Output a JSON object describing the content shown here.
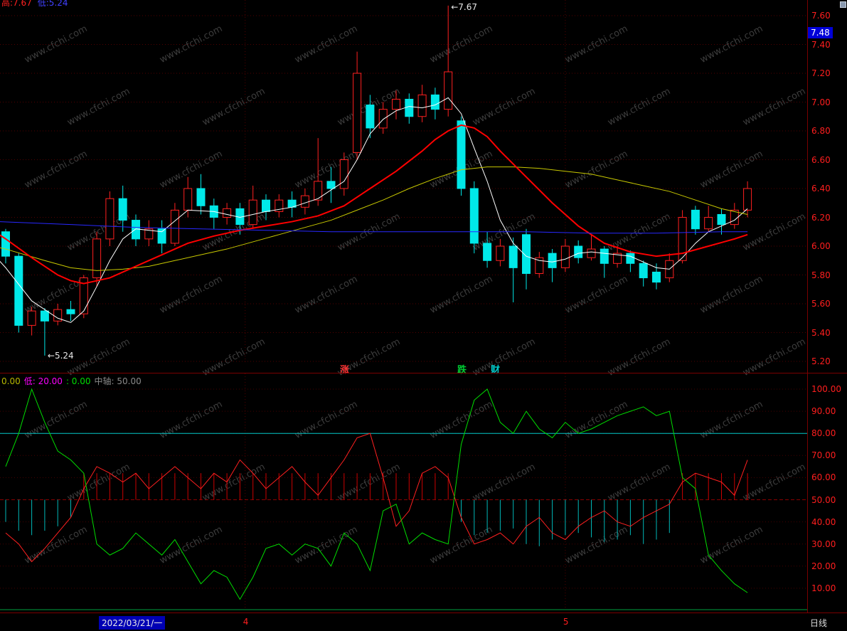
{
  "app": {
    "watermark_text": "www.cfchi.com"
  },
  "kline_panel": {
    "legend": {
      "red": "高:7.67",
      "blue": "低:5.24"
    },
    "annotations": {
      "high": "←7.67",
      "low": "←5.24"
    },
    "y_axis_labels": [
      "7.60",
      "7.40",
      "7.20",
      "7.00",
      "6.80",
      "6.60",
      "6.40",
      "6.20",
      "6.00",
      "5.80",
      "5.60",
      "5.40",
      "5.20"
    ],
    "price_badge": "7.48"
  },
  "divider": {
    "labels": [
      {
        "text": "涨",
        "color": "#ff3333",
        "x": 478
      },
      {
        "text": "跌",
        "color": "#00cc33",
        "x": 643
      },
      {
        "text": "财",
        "color": "#00cccc",
        "x": 690
      }
    ]
  },
  "oscillator_panel": {
    "legend_segments": [
      {
        "text": "0.00",
        "color": "#b8b800"
      },
      {
        "text": "低: 20.00",
        "color": "#ff00ff"
      },
      {
        "text": ": 0.00",
        "color": "#00dd00"
      },
      {
        "text": "中轴: 50.00",
        "color": "#8a8a8a"
      }
    ],
    "y_axis_labels": [
      "100.00",
      "90.00",
      "80.00",
      "70.00",
      "60.00",
      "50.00",
      "40.00",
      "30.00",
      "20.00",
      "10.00"
    ]
  },
  "bottom_bar": {
    "date_label": "2022/03/21/一",
    "period_label": "日线"
  },
  "chart_data": {
    "type": "candlestick",
    "month_boundaries": [
      {
        "label": "4",
        "index": 18.4
      },
      {
        "label": "5",
        "index": 43
      }
    ],
    "kline": {
      "ylim": [
        5.2,
        7.6
      ],
      "high_annotation": {
        "index": 34,
        "price": 7.67
      },
      "low_annotation": {
        "index": 3,
        "price": 5.24
      },
      "candles": [
        [
          6.1,
          6.12,
          5.88,
          5.93
        ],
        [
          5.93,
          5.95,
          5.4,
          5.45
        ],
        [
          5.45,
          5.58,
          5.38,
          5.55
        ],
        [
          5.55,
          5.57,
          5.24,
          5.48
        ],
        [
          5.48,
          5.6,
          5.45,
          5.56
        ],
        [
          5.56,
          5.62,
          5.48,
          5.53
        ],
        [
          5.53,
          5.8,
          5.5,
          5.78
        ],
        [
          5.78,
          6.1,
          5.72,
          6.05
        ],
        [
          6.05,
          6.38,
          6.0,
          6.33
        ],
        [
          6.33,
          6.42,
          6.1,
          6.18
        ],
        [
          6.18,
          6.22,
          6.0,
          6.05
        ],
        [
          6.05,
          6.18,
          6.0,
          6.12
        ],
        [
          6.12,
          6.18,
          5.95,
          6.02
        ],
        [
          6.02,
          6.3,
          6.0,
          6.25
        ],
        [
          6.25,
          6.48,
          6.2,
          6.4
        ],
        [
          6.4,
          6.5,
          6.22,
          6.28
        ],
        [
          6.28,
          6.33,
          6.12,
          6.2
        ],
        [
          6.2,
          6.3,
          6.15,
          6.26
        ],
        [
          6.26,
          6.3,
          6.08,
          6.15
        ],
        [
          6.15,
          6.42,
          6.12,
          6.32
        ],
        [
          6.32,
          6.36,
          6.18,
          6.24
        ],
        [
          6.24,
          6.36,
          6.2,
          6.32
        ],
        [
          6.32,
          6.38,
          6.2,
          6.27
        ],
        [
          6.27,
          6.4,
          6.22,
          6.35
        ],
        [
          6.32,
          6.75,
          6.28,
          6.45
        ],
        [
          6.45,
          6.55,
          6.3,
          6.4
        ],
        [
          6.4,
          6.65,
          6.35,
          6.6
        ],
        [
          6.65,
          7.35,
          6.6,
          7.2
        ],
        [
          6.98,
          7.05,
          6.75,
          6.82
        ],
        [
          6.82,
          7.0,
          6.78,
          6.95
        ],
        [
          6.95,
          7.08,
          6.88,
          7.02
        ],
        [
          7.02,
          7.06,
          6.85,
          6.9
        ],
        [
          6.9,
          7.12,
          6.86,
          7.05
        ],
        [
          7.05,
          7.1,
          6.88,
          6.95
        ],
        [
          6.95,
          7.67,
          6.9,
          7.21
        ],
        [
          6.87,
          6.9,
          6.35,
          6.4
        ],
        [
          6.4,
          6.45,
          5.95,
          6.02
        ],
        [
          6.02,
          6.1,
          5.85,
          5.9
        ],
        [
          5.9,
          6.05,
          5.86,
          6.0
        ],
        [
          6.0,
          6.06,
          5.61,
          5.85
        ],
        [
          6.08,
          6.12,
          5.7,
          5.81
        ],
        [
          5.81,
          5.96,
          5.78,
          5.92
        ],
        [
          5.95,
          5.98,
          5.75,
          5.85
        ],
        [
          5.85,
          6.05,
          5.82,
          6.0
        ],
        [
          6.0,
          6.04,
          5.88,
          5.92
        ],
        [
          5.92,
          6.08,
          5.9,
          5.98
        ],
        [
          5.98,
          6.0,
          5.78,
          5.88
        ],
        [
          5.88,
          6.0,
          5.85,
          5.95
        ],
        [
          5.95,
          5.97,
          5.82,
          5.88
        ],
        [
          5.88,
          5.9,
          5.72,
          5.78
        ],
        [
          5.82,
          5.88,
          5.7,
          5.75
        ],
        [
          5.78,
          5.95,
          5.75,
          5.9
        ],
        [
          5.9,
          6.25,
          5.88,
          6.2
        ],
        [
          6.25,
          6.28,
          6.08,
          6.12
        ],
        [
          6.12,
          6.28,
          6.1,
          6.2
        ],
        [
          6.22,
          6.26,
          6.08,
          6.15
        ],
        [
          6.15,
          6.3,
          6.12,
          6.25
        ],
        [
          6.25,
          6.45,
          6.2,
          6.4
        ]
      ],
      "ma_lines": [
        {
          "name": "MA-white",
          "color": "#ffffff",
          "width": 1,
          "points": [
            [
              -0.5,
              5.9
            ],
            [
              0,
              5.85
            ],
            [
              2,
              5.62
            ],
            [
              4,
              5.5
            ],
            [
              5,
              5.47
            ],
            [
              6,
              5.55
            ],
            [
              7,
              5.72
            ],
            [
              8,
              5.9
            ],
            [
              9,
              6.05
            ],
            [
              10,
              6.12
            ],
            [
              12,
              6.1
            ],
            [
              14,
              6.25
            ],
            [
              16,
              6.24
            ],
            [
              18,
              6.2
            ],
            [
              20,
              6.24
            ],
            [
              22,
              6.27
            ],
            [
              24,
              6.33
            ],
            [
              26,
              6.45
            ],
            [
              27,
              6.6
            ],
            [
              28,
              6.78
            ],
            [
              29,
              6.88
            ],
            [
              30,
              6.94
            ],
            [
              31,
              6.97
            ],
            [
              32,
              6.96
            ],
            [
              33,
              6.98
            ],
            [
              34,
              7.03
            ],
            [
              35,
              6.92
            ],
            [
              36,
              6.68
            ],
            [
              37,
              6.45
            ],
            [
              38,
              6.18
            ],
            [
              39,
              6.02
            ],
            [
              40,
              5.93
            ],
            [
              41,
              5.9
            ],
            [
              42,
              5.89
            ],
            [
              43,
              5.91
            ],
            [
              44,
              5.95
            ],
            [
              45,
              5.96
            ],
            [
              46,
              5.95
            ],
            [
              47,
              5.94
            ],
            [
              48,
              5.93
            ],
            [
              49,
              5.89
            ],
            [
              50,
              5.85
            ],
            [
              51,
              5.84
            ],
            [
              52,
              5.92
            ],
            [
              53,
              6.02
            ],
            [
              54,
              6.1
            ],
            [
              55,
              6.14
            ],
            [
              56,
              6.18
            ],
            [
              57,
              6.26
            ]
          ]
        },
        {
          "name": "MA-yellow",
          "color": "#c8c800",
          "width": 1,
          "points": [
            [
              -0.5,
              5.99
            ],
            [
              0,
              5.98
            ],
            [
              3,
              5.9
            ],
            [
              5,
              5.85
            ],
            [
              7,
              5.83
            ],
            [
              9,
              5.84
            ],
            [
              11,
              5.86
            ],
            [
              13,
              5.9
            ],
            [
              15,
              5.94
            ],
            [
              17,
              5.98
            ],
            [
              19,
              6.03
            ],
            [
              21,
              6.08
            ],
            [
              23,
              6.13
            ],
            [
              25,
              6.18
            ],
            [
              27,
              6.25
            ],
            [
              29,
              6.32
            ],
            [
              31,
              6.4
            ],
            [
              33,
              6.47
            ],
            [
              35,
              6.53
            ],
            [
              37,
              6.55
            ],
            [
              39,
              6.55
            ],
            [
              41,
              6.54
            ],
            [
              43,
              6.52
            ],
            [
              45,
              6.5
            ],
            [
              47,
              6.46
            ],
            [
              49,
              6.42
            ],
            [
              51,
              6.38
            ],
            [
              53,
              6.32
            ],
            [
              55,
              6.26
            ],
            [
              57,
              6.22
            ]
          ]
        },
        {
          "name": "MA-red",
          "color": "#ff0000",
          "width": 2,
          "points": [
            [
              -0.5,
              6.08
            ],
            [
              0,
              6.05
            ],
            [
              2,
              5.92
            ],
            [
              4,
              5.8
            ],
            [
              5,
              5.76
            ],
            [
              6,
              5.74
            ],
            [
              8,
              5.78
            ],
            [
              10,
              5.86
            ],
            [
              12,
              5.94
            ],
            [
              14,
              6.02
            ],
            [
              16,
              6.07
            ],
            [
              18,
              6.11
            ],
            [
              20,
              6.14
            ],
            [
              22,
              6.17
            ],
            [
              24,
              6.21
            ],
            [
              26,
              6.28
            ],
            [
              28,
              6.4
            ],
            [
              30,
              6.52
            ],
            [
              32,
              6.66
            ],
            [
              33,
              6.74
            ],
            [
              34,
              6.8
            ],
            [
              35,
              6.84
            ],
            [
              36,
              6.82
            ],
            [
              37,
              6.76
            ],
            [
              38,
              6.66
            ],
            [
              40,
              6.48
            ],
            [
              42,
              6.3
            ],
            [
              44,
              6.14
            ],
            [
              46,
              6.02
            ],
            [
              48,
              5.96
            ],
            [
              50,
              5.93
            ],
            [
              52,
              5.95
            ],
            [
              54,
              6.0
            ],
            [
              56,
              6.05
            ],
            [
              57,
              6.08
            ]
          ]
        },
        {
          "name": "MA-blue",
          "color": "#2828ff",
          "width": 1,
          "points": [
            [
              -0.5,
              6.17
            ],
            [
              5,
              6.15
            ],
            [
              10,
              6.13
            ],
            [
              15,
              6.12
            ],
            [
              20,
              6.11
            ],
            [
              25,
              6.1
            ],
            [
              30,
              6.1
            ],
            [
              40,
              6.1
            ],
            [
              45,
              6.09
            ],
            [
              50,
              6.09
            ],
            [
              55,
              6.1
            ],
            [
              57,
              6.1
            ]
          ]
        }
      ]
    },
    "oscillator": {
      "ylim": [
        0,
        105
      ],
      "overbought_line": 80,
      "midline": 50,
      "red": [
        35,
        30,
        22,
        28,
        35,
        42,
        55,
        65,
        62,
        58,
        62,
        55,
        60,
        65,
        60,
        55,
        62,
        58,
        68,
        62,
        55,
        60,
        65,
        58,
        52,
        60,
        68,
        78,
        80,
        60,
        38,
        45,
        62,
        65,
        60,
        42,
        30,
        32,
        35,
        30,
        38,
        42,
        35,
        32,
        38,
        42,
        45,
        40,
        38,
        42,
        45,
        48,
        58,
        62,
        60,
        58,
        52,
        68
      ],
      "green": [
        65,
        80,
        100,
        85,
        72,
        68,
        62,
        30,
        25,
        28,
        35,
        30,
        25,
        32,
        22,
        12,
        18,
        15,
        5,
        15,
        28,
        30,
        25,
        30,
        28,
        20,
        35,
        30,
        18,
        45,
        48,
        30,
        35,
        32,
        30,
        75,
        95,
        100,
        85,
        80,
        90,
        82,
        78,
        85,
        80,
        82,
        85,
        88,
        90,
        92,
        88,
        90,
        60,
        55,
        25,
        18,
        12,
        8
      ],
      "hist": [
        -10,
        -14,
        -16,
        -14,
        -12,
        -8,
        12,
        12,
        12,
        12,
        12,
        12,
        12,
        12,
        12,
        12,
        12,
        12,
        12,
        12,
        12,
        12,
        12,
        12,
        12,
        12,
        12,
        12,
        12,
        12,
        12,
        12,
        12,
        12,
        12,
        -10,
        -16,
        -15,
        -14,
        -13,
        -20,
        -21,
        -18,
        -16,
        -15,
        -17,
        -19,
        -18,
        -16,
        -20,
        -18,
        -15,
        12,
        12,
        12,
        12,
        12,
        12
      ]
    }
  }
}
